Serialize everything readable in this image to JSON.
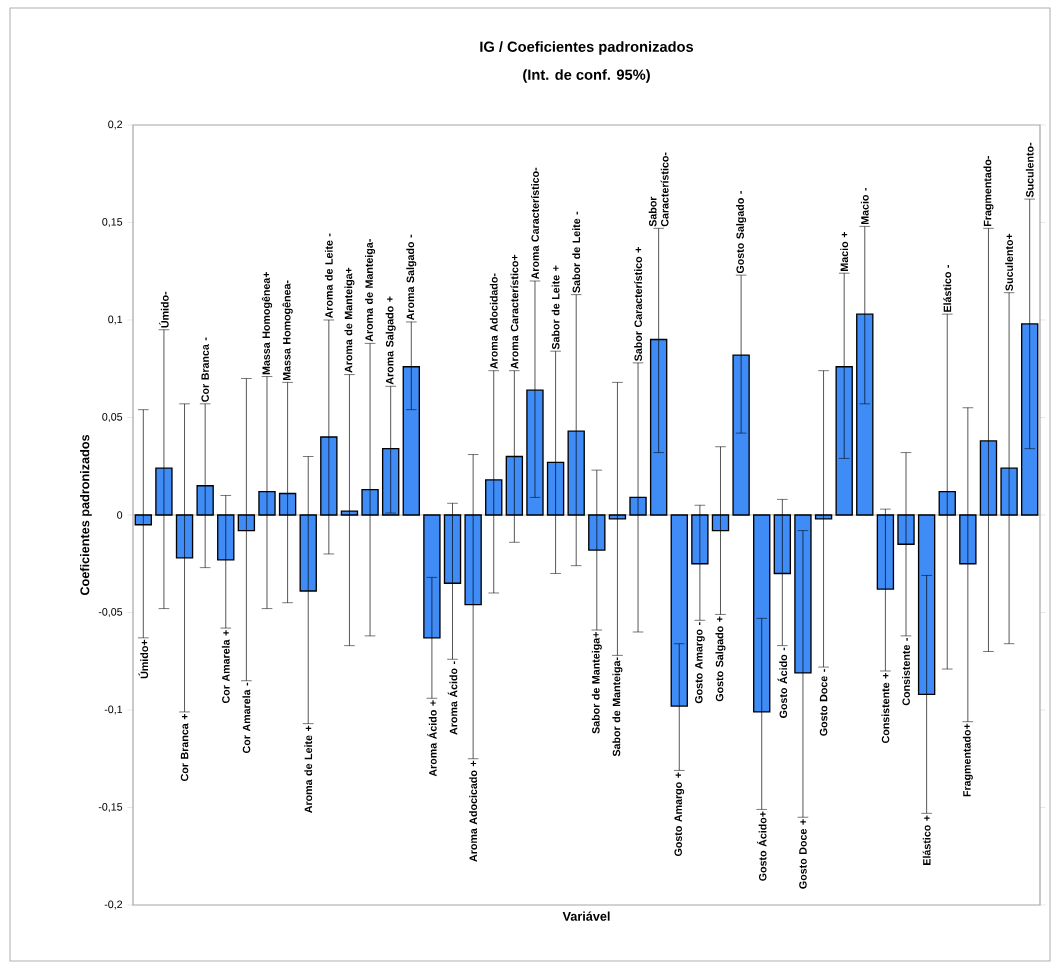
{
  "chart_data": {
    "type": "bar",
    "title": "IG / Coeficientes padronizados",
    "subtitle": "(Int. de conf. 95%)",
    "xlabel": "Variável",
    "ylabel": "Coeficientes padronizados",
    "categories": [
      "Úmido+",
      "Úmido-",
      "Cor Branca +",
      "Cor Branca -",
      "Cor Amarela +",
      "Cor Amarela -",
      "Massa Homogênea+",
      "Massa Homogênea-",
      "Aroma de Leite +",
      "Aroma de Leite -",
      "Aroma de Manteiga+",
      "Aroma de Manteiga-",
      "Aroma Salgado +",
      "Aroma Salgado -",
      "Aroma Ácido +",
      "Aroma Ácido -",
      "Aroma Adocicado +",
      "Aroma Adocidado-",
      "Aroma Característico+",
      "Aroma Característico-",
      "Sabor de Leite +",
      "Sabor de Leite -",
      "Sabor de Manteiga+",
      "Sabor de Manteiga-",
      "Sabor Característico +",
      "Sabor Característico-",
      "Gosto Amargo +",
      "Gosto Amargo -",
      "Gosto Salgado +",
      "Gosto Salgado -",
      "Gosto Ácido+",
      "Gosto Ácido -",
      "Gosto Doce +",
      "Gosto Doce -",
      "Macio +",
      "Macio -",
      "Consistente +",
      "Consistente -",
      "Elástico +",
      "Elástico -",
      "Fragmentado+",
      "Fragmentado-",
      "Suculento+",
      "Suculento-"
    ],
    "values": [
      -0.005,
      0.024,
      -0.022,
      0.015,
      -0.023,
      -0.008,
      0.012,
      0.011,
      -0.039,
      0.04,
      0.002,
      0.013,
      0.034,
      0.076,
      -0.063,
      -0.035,
      -0.046,
      0.018,
      0.03,
      0.064,
      0.027,
      0.043,
      -0.018,
      -0.002,
      0.009,
      0.09,
      -0.098,
      -0.025,
      -0.008,
      0.082,
      -0.101,
      -0.03,
      -0.081,
      -0.002,
      0.076,
      0.103,
      -0.038,
      -0.015,
      -0.092,
      0.012,
      -0.025,
      0.038,
      0.024,
      0.098
    ],
    "errors": [
      [
        -0.063,
        0.054
      ],
      [
        -0.048,
        0.095
      ],
      [
        -0.101,
        0.057
      ],
      [
        -0.027,
        0.057
      ],
      [
        -0.058,
        0.01
      ],
      [
        -0.085,
        0.07
      ],
      [
        -0.048,
        0.071
      ],
      [
        -0.045,
        0.068
      ],
      [
        -0.107,
        0.03
      ],
      [
        -0.02,
        0.1
      ],
      [
        -0.067,
        0.072
      ],
      [
        -0.062,
        0.088
      ],
      [
        0.001,
        0.066
      ],
      [
        0.054,
        0.099
      ],
      [
        -0.094,
        -0.032
      ],
      [
        -0.074,
        0.006
      ],
      [
        -0.125,
        0.031
      ],
      [
        -0.04,
        0.074
      ],
      [
        -0.014,
        0.074
      ],
      [
        0.009,
        0.12
      ],
      [
        -0.03,
        0.084
      ],
      [
        -0.026,
        0.113
      ],
      [
        -0.059,
        0.023
      ],
      [
        -0.072,
        0.068
      ],
      [
        -0.06,
        0.078
      ],
      [
        0.032,
        0.147
      ],
      [
        -0.131,
        -0.066
      ],
      [
        -0.054,
        0.005
      ],
      [
        -0.051,
        0.035
      ],
      [
        0.042,
        0.123
      ],
      [
        -0.151,
        -0.053
      ],
      [
        -0.067,
        0.008
      ],
      [
        -0.155,
        -0.008
      ],
      [
        -0.078,
        0.074
      ],
      [
        0.029,
        0.124
      ],
      [
        0.057,
        0.148
      ],
      [
        -0.08,
        0.003
      ],
      [
        -0.062,
        0.032
      ],
      [
        -0.153,
        -0.031
      ],
      [
        -0.079,
        0.103
      ],
      [
        -0.106,
        0.055
      ],
      [
        -0.07,
        0.147
      ],
      [
        -0.066,
        0.114
      ],
      [
        0.034,
        0.162
      ]
    ],
    "color": "#3f8cf7",
    "ylim": [
      -0.2,
      0.2
    ],
    "yticks": [
      {
        "value": -0.2,
        "label": "-0,2"
      },
      {
        "value": -0.15,
        "label": "-0,15"
      },
      {
        "value": -0.1,
        "label": "-0,1"
      },
      {
        "value": -0.05,
        "label": "-0,05"
      },
      {
        "value": 0,
        "label": "0"
      },
      {
        "value": 0.05,
        "label": "0,05"
      },
      {
        "value": 0.1,
        "label": "0,1"
      },
      {
        "value": 0.15,
        "label": "0,15"
      },
      {
        "value": 0.2,
        "label": "0,2"
      }
    ]
  }
}
